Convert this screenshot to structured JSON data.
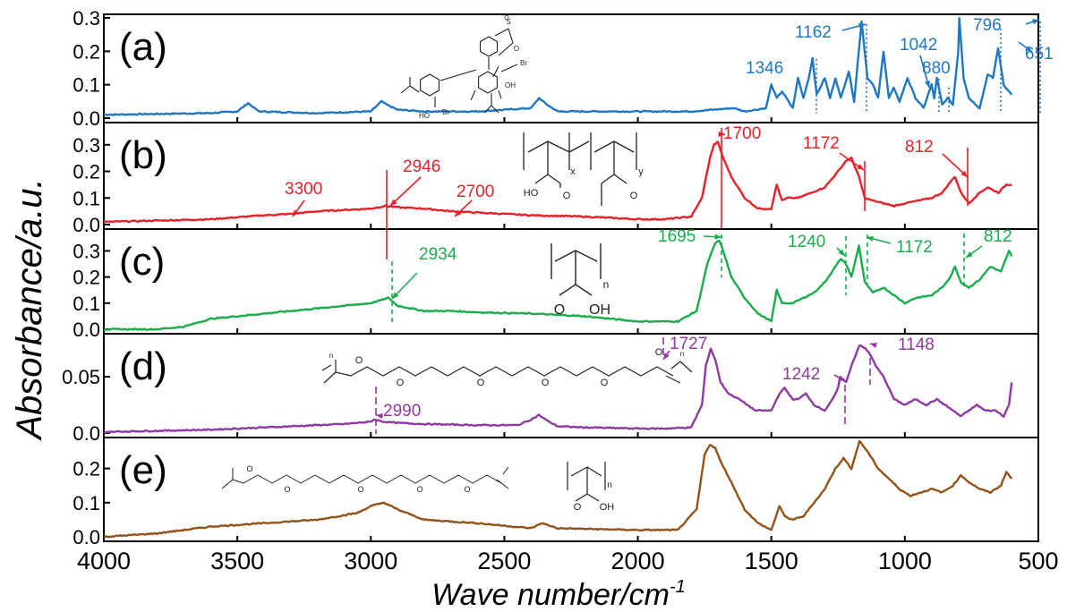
{
  "chart_data": {
    "type": "line",
    "xlabel": "Wave number/cm",
    "xlabel_superscript": "-1",
    "ylabel": "Absorbance/a.u.",
    "xlim": [
      4000,
      500
    ],
    "x_ticks": [
      "4000",
      "3500",
      "3000",
      "2500",
      "2000",
      "1500",
      "1000",
      "500"
    ],
    "x_tick_values": [
      4000,
      3500,
      3000,
      2500,
      2000,
      1500,
      1000,
      500
    ],
    "grid": false,
    "panels": [
      {
        "label": "(a)",
        "color": "#1f77c4",
        "ylim": [
          0,
          0.3
        ],
        "y_ticks": [
          "0.0",
          "0.1",
          "0.2",
          "0.3"
        ],
        "y_tick_values": [
          0,
          0.1,
          0.2,
          0.3
        ],
        "x": [
          4000,
          3600,
          3500,
          3460,
          3420,
          3200,
          3000,
          2960,
          2940,
          2900,
          2800,
          2600,
          2400,
          2370,
          2340,
          2300,
          2000,
          1800,
          1640,
          1600,
          1520,
          1500,
          1480,
          1460,
          1420,
          1400,
          1380,
          1360,
          1346,
          1330,
          1300,
          1280,
          1260,
          1240,
          1210,
          1190,
          1162,
          1140,
          1120,
          1100,
          1080,
          1060,
          1042,
          1020,
          990,
          960,
          930,
          900,
          890,
          880,
          860,
          840,
          820,
          800,
          796,
          780,
          760,
          720,
          690,
          670,
          651,
          630,
          600
        ],
        "y": [
          0.01,
          0.015,
          0.02,
          0.045,
          0.02,
          0.015,
          0.02,
          0.05,
          0.04,
          0.025,
          0.02,
          0.02,
          0.03,
          0.06,
          0.04,
          0.02,
          0.02,
          0.02,
          0.03,
          0.02,
          0.03,
          0.1,
          0.06,
          0.08,
          0.03,
          0.12,
          0.06,
          0.12,
          0.18,
          0.07,
          0.12,
          0.06,
          0.12,
          0.06,
          0.14,
          0.05,
          0.29,
          0.12,
          0.1,
          0.06,
          0.2,
          0.06,
          0.09,
          0.05,
          0.12,
          0.06,
          0.03,
          0.1,
          0.06,
          0.12,
          0.04,
          0.06,
          0.04,
          0.2,
          0.3,
          0.12,
          0.06,
          0.03,
          0.13,
          0.12,
          0.21,
          0.1,
          0.07
        ],
        "annotations": [
          "1346",
          "1162",
          "1042",
          "880",
          "796",
          "651"
        ],
        "structure": "bromocresol-purple"
      },
      {
        "label": "(b)",
        "color": "#e8202a",
        "ylim": [
          0,
          0.37
        ],
        "y_ticks": [
          "0.0",
          "0.1",
          "0.2",
          "0.3"
        ],
        "y_tick_values": [
          0,
          0.1,
          0.2,
          0.3
        ],
        "x": [
          4000,
          3800,
          3600,
          3400,
          3300,
          3200,
          3000,
          2946,
          2900,
          2800,
          2700,
          2600,
          2400,
          2200,
          2000,
          1900,
          1800,
          1760,
          1730,
          1715,
          1700,
          1680,
          1650,
          1600,
          1550,
          1500,
          1480,
          1460,
          1440,
          1400,
          1350,
          1300,
          1250,
          1220,
          1200,
          1172,
          1150,
          1120,
          1080,
          1040,
          1000,
          950,
          900,
          860,
          830,
          812,
          790,
          760,
          720,
          690,
          650,
          620,
          600
        ],
        "y": [
          0.01,
          0.015,
          0.02,
          0.035,
          0.04,
          0.05,
          0.06,
          0.07,
          0.065,
          0.06,
          0.05,
          0.045,
          0.035,
          0.03,
          0.02,
          0.02,
          0.03,
          0.1,
          0.25,
          0.3,
          0.31,
          0.25,
          0.18,
          0.1,
          0.06,
          0.06,
          0.15,
          0.09,
          0.1,
          0.1,
          0.12,
          0.14,
          0.2,
          0.24,
          0.25,
          0.18,
          0.1,
          0.09,
          0.08,
          0.07,
          0.08,
          0.09,
          0.1,
          0.12,
          0.16,
          0.18,
          0.12,
          0.08,
          0.12,
          0.14,
          0.12,
          0.15,
          0.15
        ],
        "annotations": [
          "3300",
          "2946",
          "2700",
          "1700",
          "1172",
          "812"
        ],
        "structure": "poly(acrylic acid-co-methyl acrylate)"
      },
      {
        "label": "(c)",
        "color": "#1aab4b",
        "ylim": [
          0,
          0.37
        ],
        "y_ticks": [
          "0.0",
          "0.1",
          "0.2",
          "0.3"
        ],
        "y_tick_values": [
          0,
          0.1,
          0.2,
          0.3
        ],
        "x": [
          4000,
          3800,
          3700,
          3600,
          3400,
          3200,
          3000,
          2934,
          2900,
          2800,
          2700,
          2600,
          2400,
          2200,
          2000,
          1850,
          1780,
          1740,
          1710,
          1695,
          1680,
          1650,
          1600,
          1550,
          1500,
          1480,
          1460,
          1420,
          1380,
          1340,
          1300,
          1260,
          1240,
          1220,
          1200,
          1172,
          1150,
          1120,
          1080,
          1040,
          1000,
          960,
          900,
          860,
          830,
          812,
          790,
          760,
          720,
          680,
          640,
          610,
          600
        ],
        "y": [
          0.0,
          0.0,
          0.01,
          0.04,
          0.06,
          0.08,
          0.1,
          0.12,
          0.09,
          0.07,
          0.07,
          0.065,
          0.06,
          0.05,
          0.03,
          0.03,
          0.07,
          0.25,
          0.33,
          0.34,
          0.3,
          0.2,
          0.12,
          0.06,
          0.03,
          0.15,
          0.1,
          0.1,
          0.12,
          0.14,
          0.18,
          0.24,
          0.27,
          0.25,
          0.2,
          0.32,
          0.18,
          0.14,
          0.16,
          0.13,
          0.1,
          0.12,
          0.13,
          0.16,
          0.2,
          0.24,
          0.18,
          0.16,
          0.19,
          0.24,
          0.22,
          0.3,
          0.28
        ],
        "annotations": [
          "2934",
          "1695",
          "1240",
          "1172",
          "812"
        ],
        "structure": "poly(acrylic acid)"
      },
      {
        "label": "(d)",
        "color": "#8e3aa0",
        "ylim": [
          0,
          0.085
        ],
        "y_ticks": [
          "0.0",
          "0.05"
        ],
        "y_tick_values": [
          0,
          0.05
        ],
        "x": [
          4000,
          3800,
          3600,
          3400,
          3200,
          3100,
          3000,
          2990,
          2950,
          2900,
          2800,
          2600,
          2450,
          2400,
          2370,
          2340,
          2300,
          2200,
          2000,
          1900,
          1800,
          1760,
          1745,
          1727,
          1710,
          1690,
          1660,
          1620,
          1560,
          1500,
          1470,
          1450,
          1420,
          1400,
          1370,
          1340,
          1300,
          1270,
          1250,
          1242,
          1220,
          1200,
          1170,
          1148,
          1130,
          1110,
          1080,
          1040,
          1000,
          960,
          920,
          880,
          850,
          820,
          790,
          760,
          730,
          700,
          660,
          630,
          610,
          600
        ],
        "y": [
          0.001,
          0.002,
          0.003,
          0.005,
          0.007,
          0.008,
          0.01,
          0.012,
          0.01,
          0.009,
          0.008,
          0.007,
          0.007,
          0.012,
          0.016,
          0.011,
          0.006,
          0.005,
          0.004,
          0.004,
          0.005,
          0.025,
          0.06,
          0.075,
          0.065,
          0.045,
          0.035,
          0.03,
          0.02,
          0.02,
          0.035,
          0.04,
          0.03,
          0.03,
          0.035,
          0.025,
          0.02,
          0.03,
          0.04,
          0.05,
          0.045,
          0.06,
          0.078,
          0.075,
          0.07,
          0.06,
          0.05,
          0.03,
          0.025,
          0.03,
          0.025,
          0.03,
          0.025,
          0.02,
          0.015,
          0.02,
          0.025,
          0.02,
          0.02,
          0.015,
          0.025,
          0.045
        ],
        "annotations": [
          "2990",
          "1727",
          "1242",
          "1148"
        ],
        "structure": "tetraethylene glycol diacrylate"
      },
      {
        "label": "(e)",
        "color": "#93521a",
        "ylim": [
          0,
          0.28
        ],
        "y_ticks": [
          "0.0",
          "0.1",
          "0.2"
        ],
        "y_tick_values": [
          0,
          0.1,
          0.2
        ],
        "x": [
          4000,
          3800,
          3600,
          3400,
          3200,
          3050,
          3000,
          2950,
          2900,
          2800,
          2600,
          2400,
          2360,
          2300,
          2000,
          1850,
          1780,
          1750,
          1730,
          1710,
          1690,
          1650,
          1600,
          1550,
          1500,
          1470,
          1450,
          1420,
          1380,
          1340,
          1300,
          1260,
          1230,
          1200,
          1170,
          1140,
          1100,
          1060,
          1020,
          980,
          940,
          900,
          860,
          820,
          790,
          760,
          720,
          680,
          640,
          620,
          600
        ],
        "y": [
          0.0,
          0.01,
          0.03,
          0.04,
          0.05,
          0.07,
          0.09,
          0.1,
          0.08,
          0.05,
          0.04,
          0.025,
          0.04,
          0.025,
          0.02,
          0.02,
          0.08,
          0.24,
          0.27,
          0.26,
          0.22,
          0.16,
          0.08,
          0.04,
          0.02,
          0.09,
          0.06,
          0.05,
          0.06,
          0.1,
          0.14,
          0.2,
          0.23,
          0.2,
          0.28,
          0.25,
          0.2,
          0.17,
          0.14,
          0.12,
          0.13,
          0.14,
          0.13,
          0.15,
          0.18,
          0.16,
          0.14,
          0.13,
          0.15,
          0.19,
          0.17
        ],
        "annotations": [],
        "structure": "tetraethylene glycol diacrylate + poly(acrylic acid)"
      }
    ],
    "chem_labels": {
      "x": "x",
      "y": "y",
      "n": "n",
      "ho": "HO",
      "oh": "OH",
      "o": "O",
      "s": "S",
      "br": "Br"
    }
  }
}
